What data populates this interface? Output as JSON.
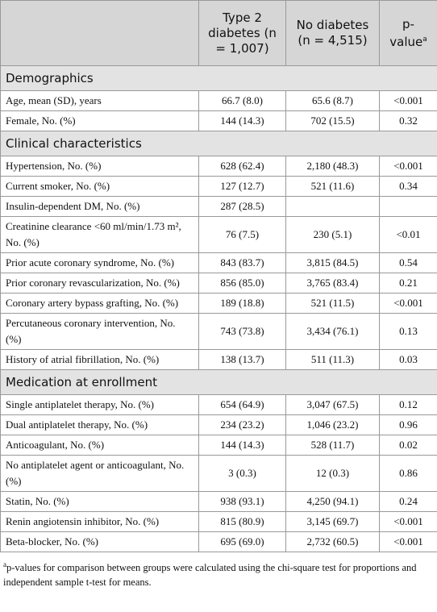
{
  "header": {
    "label": null,
    "t2d": "Type 2 diabetes (n = 1,007)",
    "nod": "No diabetes (n = 4,515)",
    "p": {
      "text": "p-value",
      "marker": "a"
    }
  },
  "sections": [
    {
      "title": "Demographics",
      "rows": [
        [
          "Age, mean (SD), years",
          "66.7 (8.0)",
          "65.6 (8.7)",
          "<0.001"
        ],
        [
          "Female, No. (%)",
          "144 (14.3)",
          "702 (15.5)",
          "0.32"
        ]
      ]
    },
    {
      "title": "Clinical characteristics",
      "rows": [
        [
          "Hypertension, No. (%)",
          "628 (62.4)",
          "2,180 (48.3)",
          "<0.001"
        ],
        [
          "Current smoker, No. (%)",
          "127 (12.7)",
          "521 (11.6)",
          "0.34"
        ],
        [
          "Insulin-dependent DM, No. (%)",
          "287 (28.5)",
          null,
          null
        ],
        [
          "Creatinine clearance <60 ml/min/1.73 m², No. (%)",
          "76 (7.5)",
          "230 (5.1)",
          "<0.01"
        ],
        [
          "Prior acute coronary syndrome, No. (%)",
          "843 (83.7)",
          "3,815 (84.5)",
          "0.54"
        ],
        [
          "Prior coronary revascularization, No. (%)",
          "856 (85.0)",
          "3,765 (83.4)",
          "0.21"
        ],
        [
          "Coronary artery bypass grafting, No. (%)",
          "189 (18.8)",
          "521 (11.5)",
          "<0.001"
        ],
        [
          "Percutaneous coronary intervention, No. (%)",
          "743 (73.8)",
          "3,434 (76.1)",
          "0.13"
        ],
        [
          "History of atrial fibrillation, No. (%)",
          "138 (13.7)",
          "511 (11.3)",
          "0.03"
        ]
      ]
    },
    {
      "title": "Medication at enrollment",
      "rows": [
        [
          "Single antiplatelet therapy, No. (%)",
          "654 (64.9)",
          "3,047 (67.5)",
          "0.12"
        ],
        [
          "Dual antiplatelet therapy, No. (%)",
          "234 (23.2)",
          "1,046 (23.2)",
          "0.96"
        ],
        [
          "Anticoagulant, No. (%)",
          "144 (14.3)",
          "528 (11.7)",
          "0.02"
        ],
        [
          "No antiplatelet agent or anticoagulant, No. (%)",
          "3 (0.3)",
          "12 (0.3)",
          "0.86"
        ],
        [
          "Statin, No. (%)",
          "938 (93.1)",
          "4,250 (94.1)",
          "0.24"
        ],
        [
          "Renin angiotensin inhibitor, No. (%)",
          "815 (80.9)",
          "3,145 (69.7)",
          "<0.001"
        ],
        [
          "Beta-blocker, No. (%)",
          "695 (69.0)",
          "2,732 (60.5)",
          "<0.001"
        ]
      ]
    }
  ],
  "footnote": {
    "marker": "a",
    "text": "p-values for comparison between groups were calculated using the chi-square test for proportions and independent sample t-test for means."
  }
}
